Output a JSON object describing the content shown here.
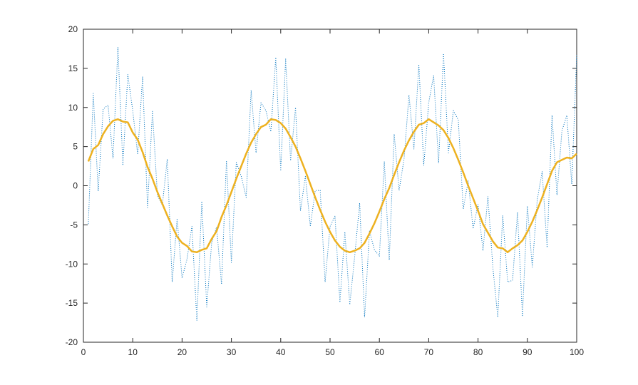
{
  "chart_data": {
    "type": "line",
    "x": [
      1,
      2,
      3,
      4,
      5,
      6,
      7,
      8,
      9,
      10,
      11,
      12,
      13,
      14,
      15,
      16,
      17,
      18,
      19,
      20,
      21,
      22,
      23,
      24,
      25,
      26,
      27,
      28,
      29,
      30,
      31,
      32,
      33,
      34,
      35,
      36,
      37,
      38,
      39,
      40,
      41,
      42,
      43,
      44,
      45,
      46,
      47,
      48,
      49,
      50,
      51,
      52,
      53,
      54,
      55,
      56,
      57,
      58,
      59,
      60,
      61,
      62,
      63,
      64,
      65,
      66,
      67,
      68,
      69,
      70,
      71,
      72,
      73,
      74,
      75,
      76,
      77,
      78,
      79,
      80,
      81,
      82,
      83,
      84,
      85,
      86,
      87,
      88,
      89,
      90,
      91,
      92,
      93,
      94,
      95,
      96,
      97,
      98,
      99,
      100
    ],
    "series": [
      {
        "color": "#0072bd",
        "style": "dotted",
        "values": [
          -4.9,
          11.8,
          -0.7,
          9.8,
          10.3,
          3.5,
          17.7,
          2.6,
          14.2,
          9.6,
          4.0,
          13.9,
          -2.8,
          9.5,
          -1.2,
          -2.5,
          3.4,
          -12.3,
          -4.2,
          -11.8,
          -9.4,
          -5.2,
          -17.2,
          -2.0,
          -15.5,
          -7.3,
          -5.3,
          -12.6,
          3.2,
          -9.8,
          3.0,
          1.2,
          -1.5,
          12.2,
          4.2,
          10.6,
          9.6,
          6.9,
          16.4,
          1.9,
          16.2,
          3.2,
          10.0,
          -3.2,
          1.2,
          -5.2,
          -0.6,
          -0.6,
          -12.3,
          -5.2,
          -3.9,
          -14.9,
          -5.9,
          -15.2,
          -9.0,
          -2.2,
          -16.8,
          -5.8,
          -8.2,
          -9.0,
          3.1,
          -9.5,
          6.6,
          -0.6,
          3.4,
          11.6,
          4.7,
          15.5,
          2.6,
          10.6,
          14.1,
          2.9,
          16.9,
          4.2,
          9.6,
          8.4,
          -3.0,
          0.6,
          -5.5,
          -2.4,
          -8.3,
          -1.4,
          -10.4,
          -16.8,
          -3.8,
          -12.3,
          -12.1,
          -3.4,
          -16.6,
          -2.6,
          -10.4,
          -1.8,
          1.8,
          -7.9,
          9.0,
          -1.2,
          7.0,
          9.0,
          0.2,
          16.7
        ]
      },
      {
        "color": "#edb120",
        "style": "solid",
        "values": [
          3.1,
          4.7,
          5.2,
          6.6,
          7.6,
          8.3,
          8.5,
          8.2,
          8.1,
          6.8,
          5.9,
          4.3,
          2.4,
          0.9,
          -0.8,
          -2.3,
          -3.8,
          -5.2,
          -6.5,
          -7.3,
          -7.7,
          -8.4,
          -8.5,
          -8.2,
          -8.0,
          -6.8,
          -5.8,
          -4.0,
          -2.5,
          -0.8,
          0.9,
          2.5,
          4.1,
          5.5,
          6.6,
          7.5,
          7.8,
          8.5,
          8.4,
          8.0,
          7.3,
          6.2,
          5.0,
          3.5,
          1.9,
          0.2,
          -1.5,
          -3.1,
          -4.6,
          -5.9,
          -7.0,
          -7.8,
          -8.3,
          -8.5,
          -8.3,
          -8.0,
          -7.3,
          -6.1,
          -4.8,
          -3.3,
          -1.7,
          -0.3,
          1.4,
          3.0,
          4.5,
          5.8,
          6.9,
          7.8,
          8.0,
          8.5,
          8.1,
          7.7,
          7.1,
          6.1,
          4.8,
          3.3,
          1.7,
          0.0,
          -1.6,
          -3.2,
          -4.9,
          -6.0,
          -7.1,
          -7.9,
          -8.0,
          -8.5,
          -8.0,
          -7.6,
          -7.0,
          -5.9,
          -4.6,
          -3.1,
          -1.5,
          0.2,
          1.9,
          3.0,
          3.3,
          3.6,
          3.5,
          4.1
        ]
      }
    ],
    "xlim": [
      0,
      100
    ],
    "xticks": [
      0,
      10,
      20,
      30,
      40,
      50,
      60,
      70,
      80,
      90,
      100
    ],
    "ylim": [
      -20,
      20
    ],
    "yticks": [
      -20,
      -15,
      -10,
      -5,
      0,
      5,
      10,
      15,
      20
    ]
  }
}
